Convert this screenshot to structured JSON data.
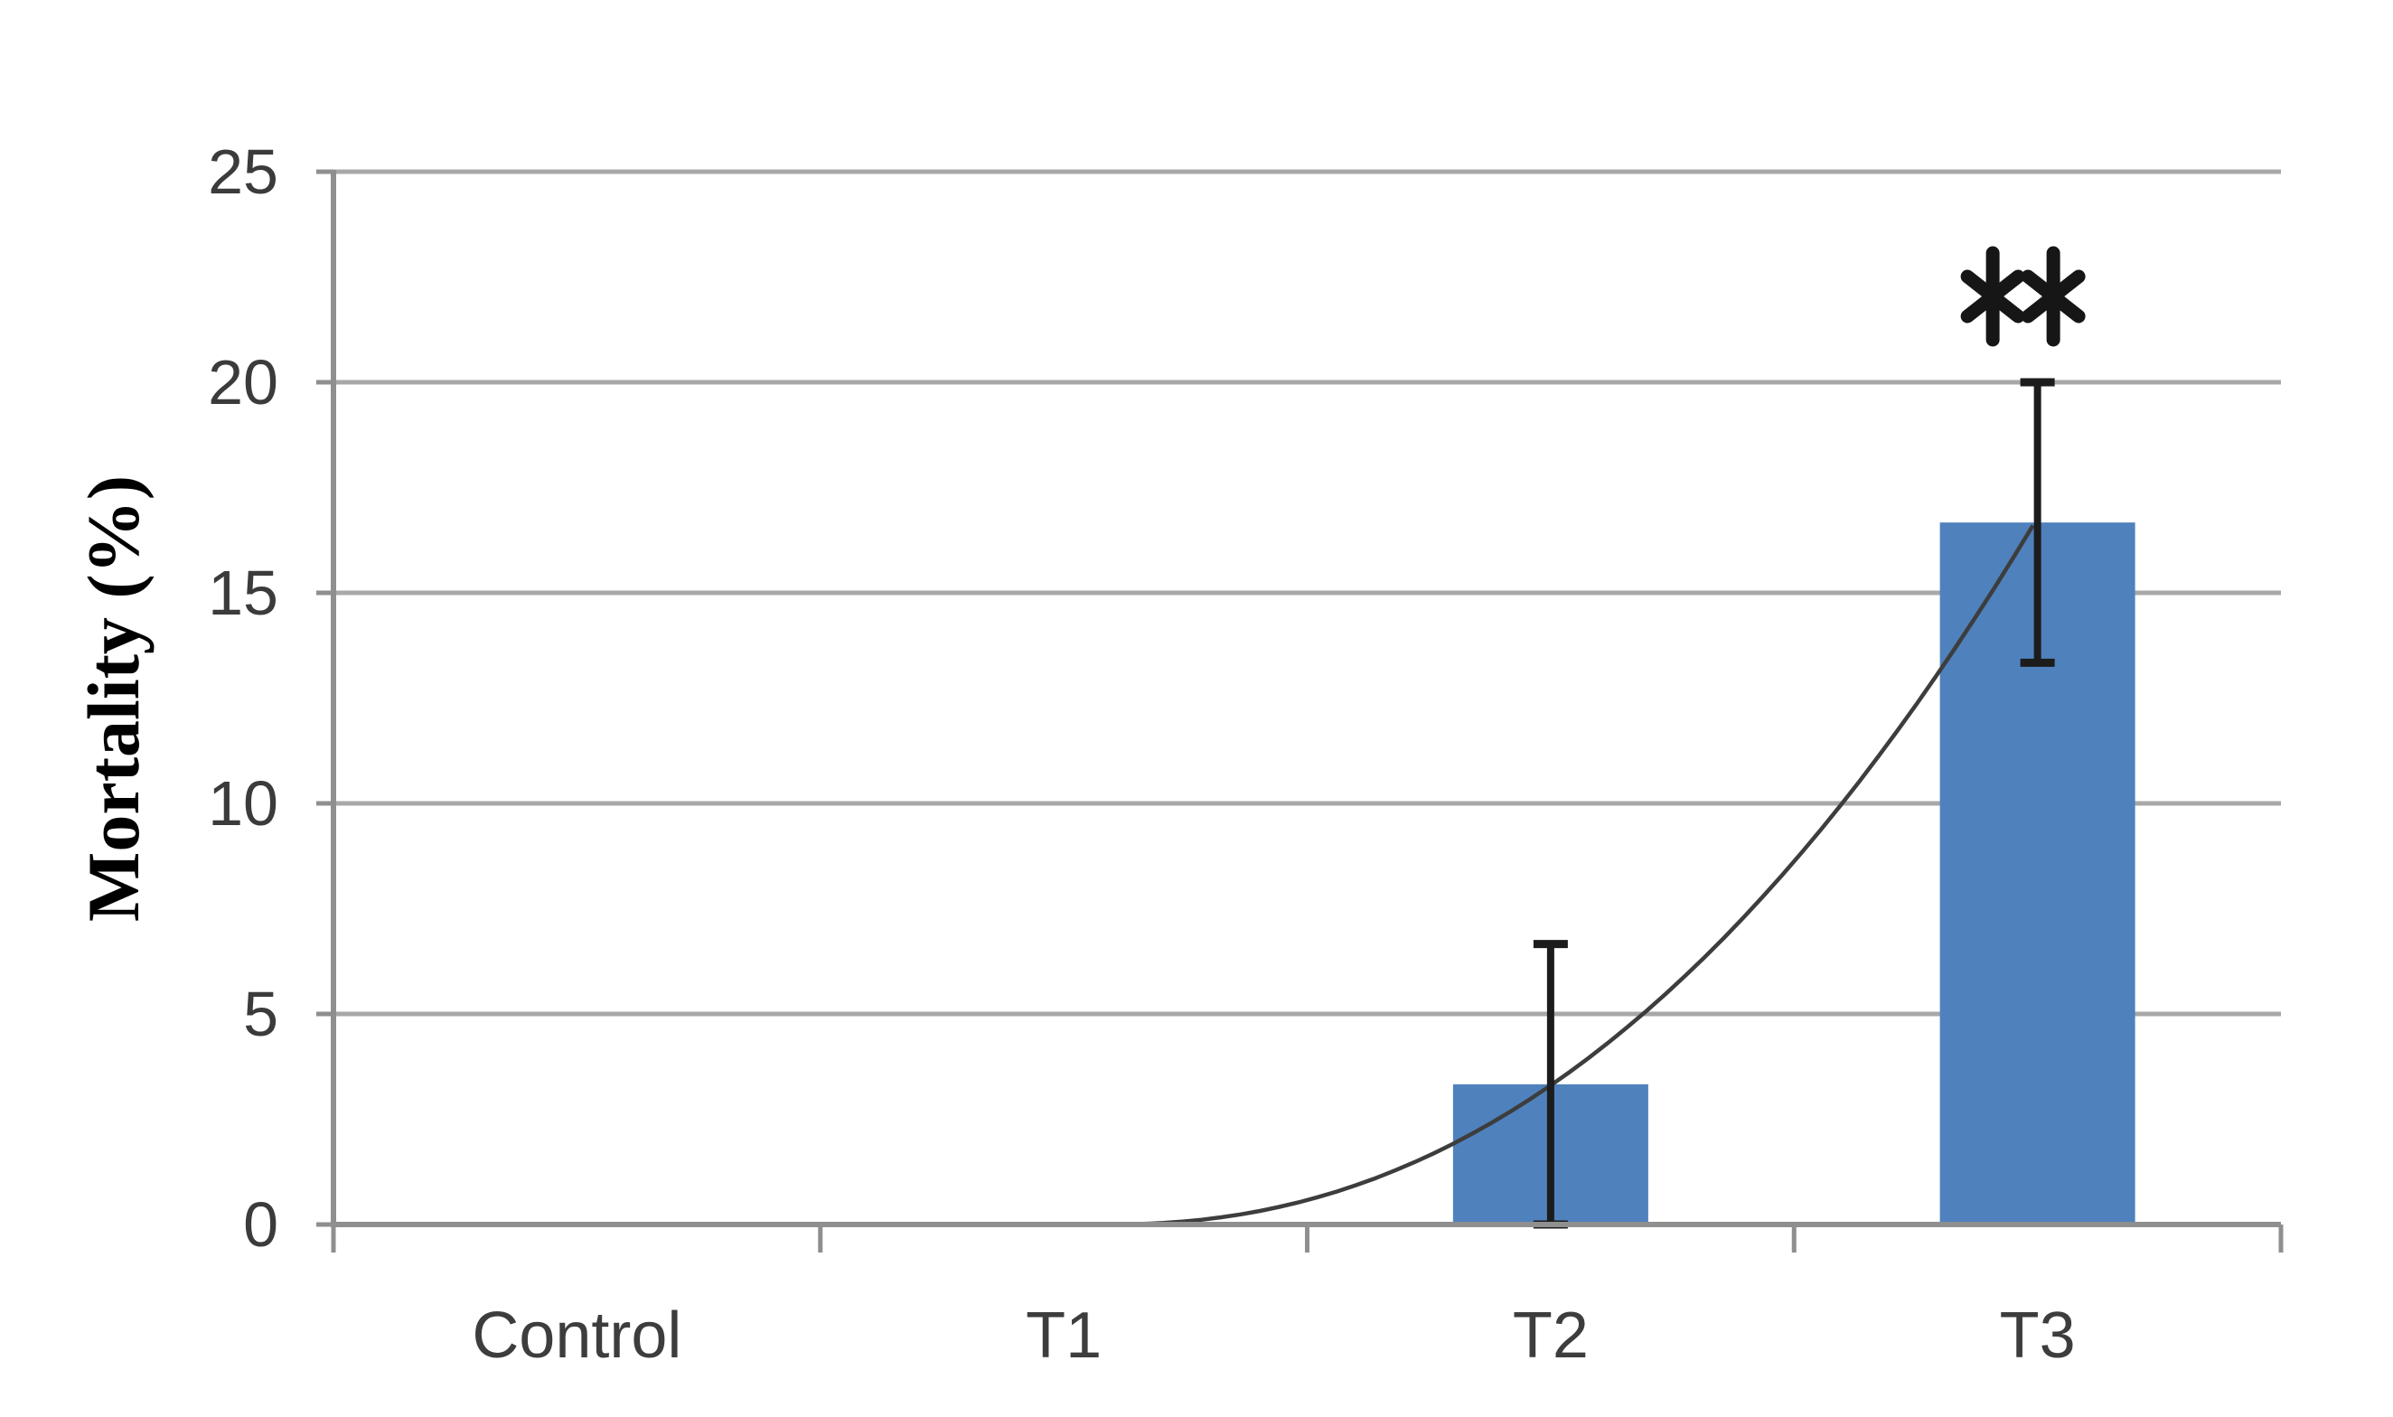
{
  "chart_data": {
    "type": "bar",
    "title": "",
    "ylabel": "Mortality (%)",
    "xlabel": "",
    "categories": [
      "Control",
      "T1",
      "T2",
      "T3"
    ],
    "series": [
      {
        "name": "Mortality",
        "values": [
          0,
          0,
          3.33,
          16.67
        ]
      }
    ],
    "error_plus": [
      0,
      0,
      3.33,
      3.33
    ],
    "error_minus": [
      0,
      0,
      3.33,
      3.33
    ],
    "yticks": [
      0,
      5,
      10,
      15,
      20,
      25
    ],
    "ylim": [
      0,
      25
    ],
    "grid": "horizontal",
    "legend": "none",
    "annotations": [
      {
        "text": "**",
        "category": "T3",
        "meaning": "significance marker above T3 error bar"
      }
    ],
    "trendline": {
      "present": true,
      "from_category": "T1",
      "to_category": "T3",
      "end_value": 16.6,
      "curvature_exponent": 2.2,
      "description": "thin dark concave-up curve rising from the baseline near T1 to the top of the T3 bar"
    },
    "colors": {
      "bar_fill": "#4f81bd",
      "error_bar": "#1c1c1c",
      "gridline": "#a8a8a8",
      "axis": "#8f8f8f",
      "trendline": "#3d3d3d",
      "tick_label": "#3b3b3b",
      "axis_title": "#000000",
      "annotation": "#161616",
      "background": "#ffffff"
    }
  }
}
